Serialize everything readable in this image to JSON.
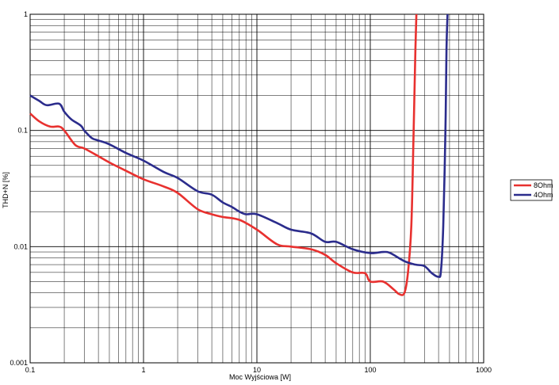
{
  "chart_data": {
    "type": "line",
    "title": "",
    "xlabel": "Moc Wyjściowa [W]",
    "ylabel": "THD+N [%]",
    "xscale": "log",
    "yscale": "log",
    "xlim": [
      0.1,
      1000
    ],
    "ylim": [
      0.001,
      1
    ],
    "grid": true,
    "legend_position": "right",
    "x_ticks": [
      "0.1",
      "1",
      "10",
      "100",
      "1000"
    ],
    "y_ticks": [
      "0.001",
      "0.01",
      "0.1",
      "1"
    ],
    "series": [
      {
        "name": "8Ohm",
        "color": "#e8312f",
        "x": [
          0.1,
          0.12,
          0.15,
          0.18,
          0.2,
          0.25,
          0.3,
          0.4,
          0.5,
          0.7,
          1,
          1.5,
          2,
          3,
          4,
          5,
          7,
          10,
          15,
          20,
          30,
          40,
          50,
          70,
          90,
          100,
          130,
          160,
          180,
          200,
          215,
          230,
          240,
          250,
          255
        ],
        "values": [
          0.14,
          0.12,
          0.108,
          0.108,
          0.1,
          0.075,
          0.07,
          0.06,
          0.053,
          0.045,
          0.038,
          0.033,
          0.029,
          0.021,
          0.019,
          0.018,
          0.017,
          0.014,
          0.0105,
          0.01,
          0.0095,
          0.0085,
          0.0072,
          0.006,
          0.0059,
          0.005,
          0.005,
          0.0043,
          0.0039,
          0.004,
          0.006,
          0.015,
          0.08,
          0.5,
          1
        ]
      },
      {
        "name": "4Ohm",
        "color": "#2b2c8c",
        "x": [
          0.1,
          0.12,
          0.14,
          0.18,
          0.2,
          0.23,
          0.28,
          0.3,
          0.35,
          0.4,
          0.5,
          0.7,
          1,
          1.5,
          2,
          3,
          4,
          5,
          6,
          7,
          8,
          10,
          15,
          20,
          30,
          40,
          50,
          70,
          100,
          130,
          150,
          200,
          250,
          300,
          350,
          400,
          420,
          440,
          460,
          470,
          480
        ],
        "values": [
          0.2,
          0.18,
          0.165,
          0.17,
          0.145,
          0.125,
          0.11,
          0.1,
          0.086,
          0.082,
          0.076,
          0.064,
          0.055,
          0.044,
          0.039,
          0.03,
          0.028,
          0.024,
          0.022,
          0.02,
          0.019,
          0.019,
          0.016,
          0.014,
          0.013,
          0.011,
          0.011,
          0.0095,
          0.0088,
          0.009,
          0.0088,
          0.0075,
          0.007,
          0.0068,
          0.0059,
          0.0055,
          0.0062,
          0.015,
          0.1,
          0.5,
          1
        ]
      }
    ]
  }
}
